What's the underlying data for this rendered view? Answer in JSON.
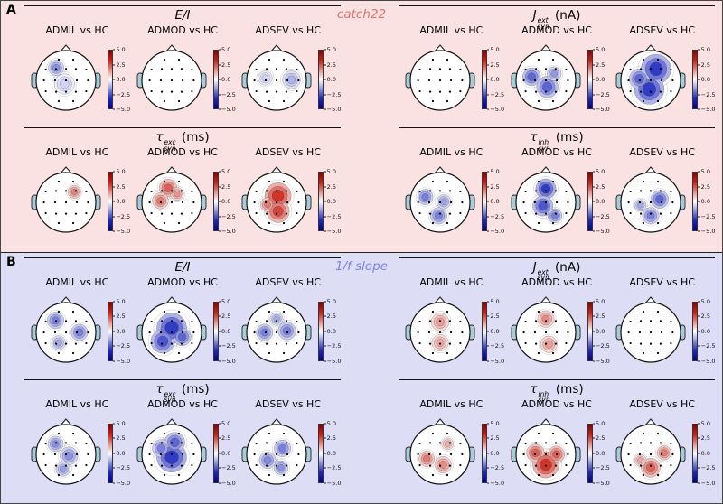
{
  "figure": {
    "colorbar_ticks": [
      "5.0",
      "2.5",
      "0.0",
      "−2.5",
      "−5.0"
    ],
    "colors": {
      "pos": "#cc2318",
      "pos_dark": "#8b0000",
      "neg": "#1f2bbf",
      "neg_dark": "#00008b",
      "ear": "#a9cdd8",
      "line": "#111111"
    }
  },
  "panels": [
    {
      "label": "A",
      "method": "catch22",
      "method_color": "#e0716b",
      "bg": "#f9e2e1",
      "rows": [
        {
          "sections": [
            {
              "title": {
                "main": "E/I",
                "sup": "",
                "sub": "",
                "unit": ""
              },
              "plots": [
                {
                  "label": "ADMIL vs HC",
                  "blobs": [
                    {
                      "x": -0.33,
                      "y": -0.42,
                      "r": 0.26,
                      "v": -2.6
                    },
                    {
                      "x": -0.05,
                      "y": 0.12,
                      "r": 0.34,
                      "v": -1.0
                    }
                  ]
                },
                {
                  "label": "ADMOD vs HC",
                  "blobs": []
                },
                {
                  "label": "ADSEV vs HC",
                  "blobs": [
                    {
                      "x": 0.5,
                      "y": -0.02,
                      "r": 0.3,
                      "v": -1.8
                    },
                    {
                      "x": -0.38,
                      "y": -0.08,
                      "r": 0.24,
                      "v": -1.0
                    }
                  ]
                }
              ]
            },
            {
              "title": {
                "main": "J",
                "sup": "ext",
                "sub": "syn",
                "unit": "(nA)"
              },
              "plots": [
                {
                  "label": "ADMIL vs HC",
                  "blobs": []
                },
                {
                  "label": "ADMOD vs HC",
                  "blobs": [
                    {
                      "x": -0.48,
                      "y": -0.12,
                      "r": 0.3,
                      "v": -3.6
                    },
                    {
                      "x": 0.05,
                      "y": 0.22,
                      "r": 0.36,
                      "v": -3.6
                    },
                    {
                      "x": 0.28,
                      "y": -0.22,
                      "r": 0.24,
                      "v": -2.4
                    }
                  ]
                },
                {
                  "label": "ADSEV vs HC",
                  "blobs": [
                    {
                      "x": 0.18,
                      "y": -0.38,
                      "r": 0.5,
                      "v": -4.6
                    },
                    {
                      "x": -0.05,
                      "y": 0.3,
                      "r": 0.5,
                      "v": -4.6
                    },
                    {
                      "x": -0.38,
                      "y": -0.05,
                      "r": 0.34,
                      "v": -3.6
                    }
                  ]
                }
              ]
            }
          ]
        },
        {
          "sections": [
            {
              "title": {
                "main": "τ",
                "sup": "exc",
                "sub": "syn",
                "unit": "(ms)"
              },
              "plots": [
                {
                  "label": "ADMIL vs HC",
                  "blobs": [
                    {
                      "x": 0.28,
                      "y": -0.35,
                      "r": 0.22,
                      "v": 2.8
                    }
                  ]
                },
                {
                  "label": "ADMOD vs HC",
                  "blobs": [
                    {
                      "x": -0.12,
                      "y": -0.48,
                      "r": 0.3,
                      "v": 3.6
                    },
                    {
                      "x": -0.38,
                      "y": -0.05,
                      "r": 0.27,
                      "v": 3.0
                    },
                    {
                      "x": 0.18,
                      "y": -0.28,
                      "r": 0.22,
                      "v": 2.4
                    }
                  ]
                },
                {
                  "label": "ADSEV vs HC",
                  "blobs": [
                    {
                      "x": 0.05,
                      "y": -0.22,
                      "r": 0.44,
                      "v": 4.6
                    },
                    {
                      "x": 0.05,
                      "y": 0.3,
                      "r": 0.38,
                      "v": 4.2
                    },
                    {
                      "x": -0.3,
                      "y": 0.08,
                      "r": 0.24,
                      "v": 3.0
                    }
                  ]
                }
              ]
            },
            {
              "title": {
                "main": "τ",
                "sup": "inh",
                "sub": "syn",
                "unit": "(ms)"
              },
              "plots": [
                {
                  "label": "ADMIL vs HC",
                  "blobs": [
                    {
                      "x": -0.5,
                      "y": -0.18,
                      "r": 0.26,
                      "v": -3.0
                    },
                    {
                      "x": -0.05,
                      "y": 0.45,
                      "r": 0.28,
                      "v": -3.0
                    },
                    {
                      "x": 0.12,
                      "y": -0.02,
                      "r": 0.24,
                      "v": -2.2
                    }
                  ]
                },
                {
                  "label": "ADMOD vs HC",
                  "blobs": [
                    {
                      "x": 0.0,
                      "y": -0.45,
                      "r": 0.34,
                      "v": -4.6
                    },
                    {
                      "x": -0.1,
                      "y": 0.12,
                      "r": 0.34,
                      "v": -4.0
                    },
                    {
                      "x": 0.3,
                      "y": 0.45,
                      "r": 0.24,
                      "v": -3.0
                    }
                  ]
                },
                {
                  "label": "ADSEV vs HC",
                  "blobs": [
                    {
                      "x": 0.3,
                      "y": -0.1,
                      "r": 0.3,
                      "v": -3.6
                    },
                    {
                      "x": 0.0,
                      "y": 0.45,
                      "r": 0.28,
                      "v": -3.0
                    },
                    {
                      "x": -0.35,
                      "y": 0.1,
                      "r": 0.2,
                      "v": -2.0
                    }
                  ]
                }
              ]
            }
          ]
        }
      ]
    },
    {
      "label": "B",
      "method": "1/f slope",
      "method_color": "#7b84e0",
      "bg": "#dddef6",
      "rows": [
        {
          "sections": [
            {
              "title": {
                "main": "E/I",
                "sup": "",
                "sub": "",
                "unit": ""
              },
              "plots": [
                {
                  "label": "ADMIL vs HC",
                  "blobs": [
                    {
                      "x": -0.35,
                      "y": -0.4,
                      "r": 0.28,
                      "v": -3.0
                    },
                    {
                      "x": 0.45,
                      "y": 0.0,
                      "r": 0.28,
                      "v": -3.0
                    },
                    {
                      "x": -0.25,
                      "y": 0.35,
                      "r": 0.24,
                      "v": -2.0
                    }
                  ]
                },
                {
                  "label": "ADMOD vs HC",
                  "blobs": [
                    {
                      "x": 0.0,
                      "y": -0.15,
                      "r": 0.5,
                      "v": -4.6
                    },
                    {
                      "x": -0.3,
                      "y": 0.3,
                      "r": 0.4,
                      "v": -4.0
                    },
                    {
                      "x": 0.35,
                      "y": 0.15,
                      "r": 0.3,
                      "v": -3.6
                    }
                  ]
                },
                {
                  "label": "ADSEV vs HC",
                  "blobs": [
                    {
                      "x": -0.4,
                      "y": 0.0,
                      "r": 0.28,
                      "v": -3.0
                    },
                    {
                      "x": 0.35,
                      "y": -0.05,
                      "r": 0.3,
                      "v": -3.0
                    },
                    {
                      "x": 0.0,
                      "y": -0.45,
                      "r": 0.22,
                      "v": -2.0
                    }
                  ]
                }
              ]
            },
            {
              "title": {
                "main": "J",
                "sup": "ext",
                "sub": "syn",
                "unit": "(nA)"
              },
              "plots": [
                {
                  "label": "ADMIL vs HC",
                  "blobs": [
                    {
                      "x": 0.0,
                      "y": -0.35,
                      "r": 0.3,
                      "v": 2.2
                    },
                    {
                      "x": 0.0,
                      "y": 0.35,
                      "r": 0.28,
                      "v": 2.0
                    }
                  ]
                },
                {
                  "label": "ADMOD vs HC",
                  "blobs": [
                    {
                      "x": 0.0,
                      "y": -0.45,
                      "r": 0.28,
                      "v": 2.6
                    },
                    {
                      "x": 0.1,
                      "y": 0.4,
                      "r": 0.28,
                      "v": 2.2
                    }
                  ]
                },
                {
                  "label": "ADSEV vs HC",
                  "blobs": []
                }
              ]
            }
          ]
        },
        {
          "sections": [
            {
              "title": {
                "main": "τ",
                "sup": "exc",
                "sub": "syn",
                "unit": "(ms)"
              },
              "plots": [
                {
                  "label": "ADMIL vs HC",
                  "blobs": [
                    {
                      "x": -0.35,
                      "y": -0.35,
                      "r": 0.26,
                      "v": -2.6
                    },
                    {
                      "x": 0.1,
                      "y": 0.05,
                      "r": 0.3,
                      "v": -2.6
                    },
                    {
                      "x": -0.1,
                      "y": 0.5,
                      "r": 0.24,
                      "v": -2.2
                    }
                  ]
                },
                {
                  "label": "ADMOD vs HC",
                  "blobs": [
                    {
                      "x": 0.0,
                      "y": 0.1,
                      "r": 0.5,
                      "v": -4.6
                    },
                    {
                      "x": 0.1,
                      "y": -0.4,
                      "r": 0.34,
                      "v": -3.6
                    },
                    {
                      "x": -0.35,
                      "y": -0.2,
                      "r": 0.3,
                      "v": -3.0
                    }
                  ]
                },
                {
                  "label": "ADSEV vs HC",
                  "blobs": [
                    {
                      "x": 0.2,
                      "y": -0.2,
                      "r": 0.28,
                      "v": -3.0
                    },
                    {
                      "x": -0.3,
                      "y": 0.2,
                      "r": 0.28,
                      "v": -2.8
                    },
                    {
                      "x": 0.15,
                      "y": 0.45,
                      "r": 0.24,
                      "v": -2.6
                    }
                  ]
                }
              ]
            },
            {
              "title": {
                "main": "τ",
                "sup": "inh",
                "sub": "syn",
                "unit": "(ms)"
              },
              "plots": [
                {
                  "label": "ADMIL vs HC",
                  "blobs": [
                    {
                      "x": -0.45,
                      "y": 0.15,
                      "r": 0.26,
                      "v": 3.0
                    },
                    {
                      "x": 0.1,
                      "y": 0.35,
                      "r": 0.28,
                      "v": 2.6
                    },
                    {
                      "x": 0.25,
                      "y": -0.35,
                      "r": 0.2,
                      "v": 1.8
                    }
                  ]
                },
                {
                  "label": "ADMOD vs HC",
                  "blobs": [
                    {
                      "x": 0.0,
                      "y": 0.35,
                      "r": 0.44,
                      "v": 4.6
                    },
                    {
                      "x": -0.35,
                      "y": -0.05,
                      "r": 0.3,
                      "v": 3.6
                    },
                    {
                      "x": 0.35,
                      "y": 0.0,
                      "r": 0.28,
                      "v": 3.6
                    }
                  ]
                },
                {
                  "label": "ADSEV vs HC",
                  "blobs": [
                    {
                      "x": 0.0,
                      "y": 0.45,
                      "r": 0.32,
                      "v": 3.5
                    },
                    {
                      "x": 0.45,
                      "y": -0.05,
                      "r": 0.24,
                      "v": 3.0
                    },
                    {
                      "x": -0.35,
                      "y": 0.2,
                      "r": 0.2,
                      "v": 2.0
                    }
                  ]
                }
              ]
            }
          ]
        }
      ]
    }
  ]
}
